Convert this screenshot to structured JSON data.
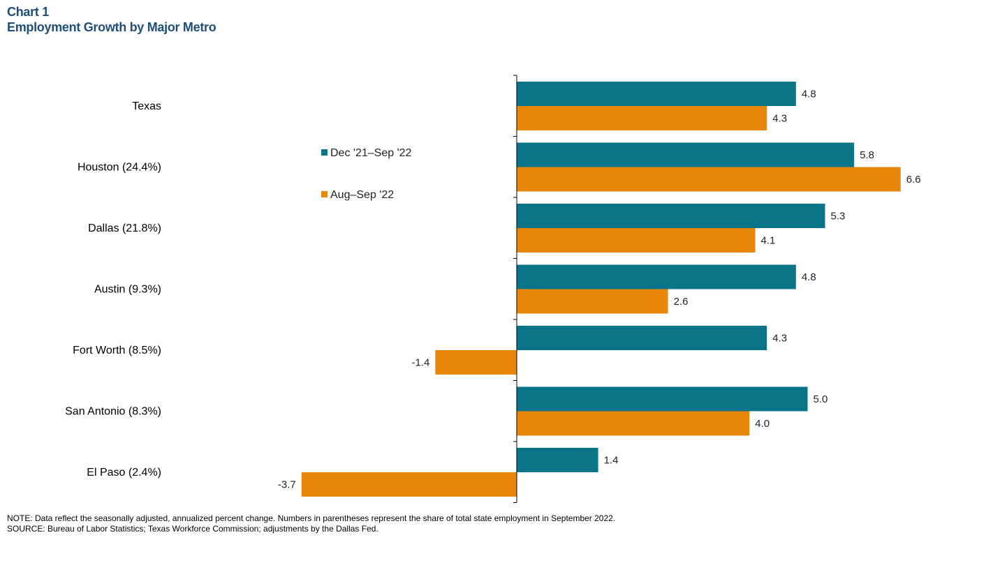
{
  "header": {
    "chart_number": "Chart 1",
    "title": "Employment Growth by Major Metro"
  },
  "chart_data": {
    "type": "bar",
    "orientation": "horizontal",
    "title": "Employment Growth by Major Metro",
    "categories": [
      "Texas",
      "Houston (24.4%)",
      "Dallas (21.8%)",
      "Austin (9.3%)",
      "Fort Worth (8.5%)",
      "San Antonio (8.3%)",
      "El Paso (2.4%)"
    ],
    "series": [
      {
        "name": "Dec '21–Sep '22",
        "color": "#0a7489",
        "values": [
          4.8,
          5.8,
          5.3,
          4.8,
          4.3,
          5.0,
          1.4
        ],
        "labels": [
          "4.8",
          "5.8",
          "5.3",
          "4.8",
          "4.3",
          "5.0",
          "1.4"
        ]
      },
      {
        "name": "Aug–Sep '22",
        "color": "#e8870a",
        "values": [
          4.3,
          6.6,
          4.1,
          2.6,
          -1.4,
          4.0,
          -3.7
        ],
        "labels": [
          "4.3",
          "6.6",
          "4.1",
          "2.6",
          "-1.4",
          "4.0",
          "-3.7"
        ]
      }
    ],
    "xlim": [
      -3.7,
      6.6
    ],
    "legend": "upper-left of plot, vertical"
  },
  "notes": {
    "note": "NOTE: Data reflect the seasonally adjusted, annualized percent change. Numbers in parentheses represent the share of total state employment in September 2022.",
    "source": "SOURCE: Bureau of Labor Statistics; Texas Workforce Commission; adjustments by the Dallas Fed."
  }
}
